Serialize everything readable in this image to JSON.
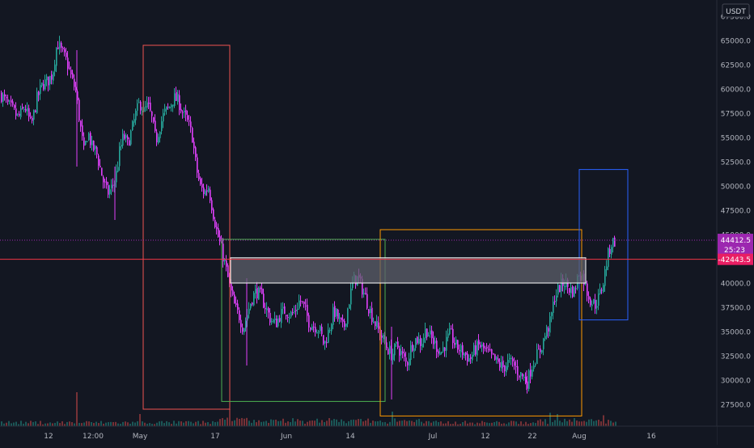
{
  "chart_data": {
    "type": "candlestick",
    "currency": "USDT",
    "y_axis": {
      "range": [
        25000,
        68000
      ],
      "ticks": [
        27500,
        30000,
        32500,
        35000,
        37500,
        40000,
        42500,
        45000,
        47500,
        50000,
        52500,
        55000,
        57500,
        60000,
        62500,
        65000,
        67500
      ],
      "tick_labels": [
        "27500.0",
        "30000.0",
        "32500.0",
        "35000.0",
        "37500.0",
        "40000.0",
        "42500.0",
        "45000.0",
        "47500.0",
        "50000.0",
        "52500.0",
        "55000.0",
        "57500.0",
        "60000.0",
        "62500.0",
        "65000.0",
        "67500.0"
      ]
    },
    "x_axis": {
      "tick_labels": [
        "12",
        "12:00",
        "May",
        "17",
        "Jun",
        "14",
        "Jul",
        "12",
        "22",
        "Aug",
        "16"
      ]
    },
    "price_markers": {
      "last_price": "44412.5",
      "countdown": "25:23",
      "horizontal_line": "42443.5"
    },
    "price_path": [
      [
        0,
        59500
      ],
      [
        8,
        58500
      ],
      [
        15,
        57800
      ],
      [
        22,
        57000
      ],
      [
        30,
        58200
      ],
      [
        38,
        56200
      ],
      [
        45,
        59000
      ],
      [
        52,
        60500
      ],
      [
        58,
        60800
      ],
      [
        64,
        61500
      ],
      [
        70,
        64800
      ],
      [
        76,
        63700
      ],
      [
        82,
        62800
      ],
      [
        88,
        61000
      ],
      [
        93,
        59800
      ],
      [
        98,
        56500
      ],
      [
        103,
        53500
      ],
      [
        108,
        55600
      ],
      [
        113,
        54000
      ],
      [
        118,
        53600
      ],
      [
        122,
        52200
      ],
      [
        127,
        50500
      ],
      [
        132,
        49200
      ],
      [
        137,
        49800
      ],
      [
        142,
        50700
      ],
      [
        147,
        53500
      ],
      [
        152,
        55200
      ],
      [
        157,
        54300
      ],
      [
        162,
        55700
      ],
      [
        167,
        57400
      ],
      [
        172,
        58600
      ],
      [
        177,
        57700
      ],
      [
        182,
        58300
      ],
      [
        187,
        56900
      ],
      [
        192,
        54600
      ],
      [
        197,
        56200
      ],
      [
        202,
        57500
      ],
      [
        208,
        58000
      ],
      [
        214,
        59100
      ],
      [
        220,
        58700
      ],
      [
        226,
        57400
      ],
      [
        232,
        56400
      ],
      [
        237,
        55100
      ],
      [
        242,
        51800
      ],
      [
        247,
        49900
      ],
      [
        252,
        49300
      ],
      [
        257,
        49900
      ],
      [
        262,
        47600
      ],
      [
        267,
        45400
      ],
      [
        272,
        43800
      ],
      [
        277,
        42100
      ],
      [
        282,
        40100
      ],
      [
        286,
        38600
      ],
      [
        290,
        37400
      ],
      [
        295,
        36600
      ],
      [
        300,
        35300
      ],
      [
        305,
        36800
      ],
      [
        310,
        38300
      ],
      [
        316,
        39200
      ],
      [
        322,
        38600
      ],
      [
        328,
        37400
      ],
      [
        334,
        36200
      ],
      [
        340,
        35800
      ],
      [
        346,
        36800
      ],
      [
        352,
        37200
      ],
      [
        358,
        36700
      ],
      [
        364,
        37100
      ],
      [
        370,
        38300
      ],
      [
        376,
        37300
      ],
      [
        382,
        35800
      ],
      [
        388,
        35600
      ],
      [
        394,
        35300
      ],
      [
        400,
        33600
      ],
      [
        406,
        35200
      ],
      [
        412,
        37200
      ],
      [
        418,
        36200
      ],
      [
        424,
        35200
      ],
      [
        430,
        37800
      ],
      [
        436,
        40300
      ],
      [
        442,
        40500
      ],
      [
        448,
        39200
      ],
      [
        454,
        37800
      ],
      [
        460,
        36400
      ],
      [
        466,
        35300
      ],
      [
        472,
        34300
      ],
      [
        478,
        33300
      ],
      [
        484,
        32600
      ],
      [
        490,
        33600
      ],
      [
        496,
        32600
      ],
      [
        502,
        31600
      ],
      [
        508,
        33600
      ],
      [
        514,
        34300
      ],
      [
        520,
        33800
      ],
      [
        526,
        35300
      ],
      [
        532,
        34300
      ],
      [
        538,
        33600
      ],
      [
        544,
        32800
      ],
      [
        550,
        33800
      ],
      [
        556,
        34800
      ],
      [
        562,
        33600
      ],
      [
        568,
        33100
      ],
      [
        574,
        32700
      ],
      [
        580,
        32100
      ],
      [
        586,
        33100
      ],
      [
        592,
        33600
      ],
      [
        598,
        33100
      ],
      [
        604,
        32600
      ],
      [
        610,
        32100
      ],
      [
        616,
        31600
      ],
      [
        622,
        31300
      ],
      [
        628,
        31900
      ],
      [
        634,
        31600
      ],
      [
        640,
        30800
      ],
      [
        646,
        30300
      ],
      [
        651,
        29800
      ],
      [
        656,
        31300
      ],
      [
        661,
        32300
      ],
      [
        667,
        33100
      ],
      [
        673,
        34600
      ],
      [
        679,
        35900
      ],
      [
        685,
        38600
      ],
      [
        691,
        39600
      ],
      [
        697,
        40100
      ],
      [
        703,
        39400
      ],
      [
        709,
        39100
      ],
      [
        715,
        41100
      ],
      [
        720,
        40600
      ],
      [
        725,
        39100
      ],
      [
        730,
        38100
      ],
      [
        735,
        37800
      ],
      [
        740,
        38600
      ],
      [
        745,
        40100
      ],
      [
        750,
        42600
      ],
      [
        755,
        44100
      ],
      [
        760,
        44400
      ]
    ],
    "volume_spikes": [
      [
        95,
        0.28
      ],
      [
        172,
        0.1
      ],
      [
        282,
        0.14
      ],
      [
        484,
        0.12
      ],
      [
        680,
        0.11
      ],
      [
        688,
        0.1
      ],
      [
        746,
        0.09
      ]
    ],
    "rectangles": [
      {
        "name": "red-box",
        "color": "#ef5350",
        "x1": 177,
        "x2": 284,
        "y_top": 64500,
        "y_bottom": 27000,
        "fill": "none"
      },
      {
        "name": "green-box",
        "color": "#4caf50",
        "x1": 274,
        "x2": 476,
        "y_top": 44500,
        "y_bottom": 27800,
        "fill": "none"
      },
      {
        "name": "orange-box",
        "color": "#ff9800",
        "x1": 470,
        "x2": 719,
        "y_top": 45500,
        "y_bottom": 26300,
        "fill": "none"
      },
      {
        "name": "blue-box",
        "color": "#2962ff",
        "x1": 716,
        "x2": 776,
        "y_top": 51700,
        "y_bottom": 36200,
        "fill": "none"
      },
      {
        "name": "white-zone",
        "color": "#ffffff",
        "x1": 285,
        "x2": 724,
        "y_top": 42600,
        "y_bottom": 40000,
        "fill": "#5d606b"
      }
    ],
    "colors": {
      "background": "#131722",
      "up": "#26a69a",
      "down": "#e040fb",
      "horizontal_line": "#f23645",
      "last_price_badge": "#9c27b0",
      "marker_badge": "#e91e63"
    }
  }
}
